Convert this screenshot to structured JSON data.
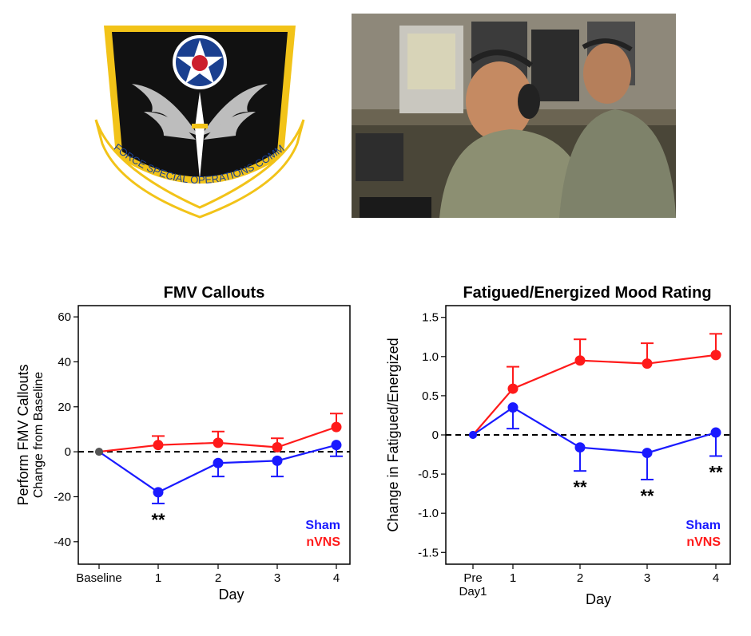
{
  "emblem": {
    "ribbon_text": "AIR FORCE SPECIAL OPERATIONS COMMAND",
    "colors": {
      "shield": "#111111",
      "border": "#f2c318",
      "star_disc": "#1a3f8f",
      "center": "#cc1f2d",
      "wings": "#bdbdbd"
    }
  },
  "photo": {
    "icon": "operators-at-workstations-photo"
  },
  "colors": {
    "sham": "#1a1aff",
    "nvns": "#ff1a1a"
  },
  "chart_data": [
    {
      "type": "line",
      "title": "FMV Callouts",
      "ylabel": "Perform FMV Callouts",
      "ylabel_sub": "Change  from Baseline",
      "xlabel": "Day",
      "categories": [
        "Baseline",
        "1",
        "2",
        "3",
        "4"
      ],
      "ylim": [
        -50,
        65
      ],
      "yticks": [
        60,
        40,
        20,
        0,
        -20,
        -40
      ],
      "ytick_labels": [
        "60",
        "40",
        "20",
        "0",
        "-20",
        "-40"
      ],
      "series": [
        {
          "name": "Sham",
          "values": [
            0,
            -18,
            -5,
            -4,
            3
          ],
          "error": [
            0,
            5,
            6,
            7,
            5
          ]
        },
        {
          "name": "nVNS",
          "values": [
            0,
            3,
            4,
            2,
            11
          ],
          "error": [
            0,
            4,
            5,
            4,
            6
          ]
        }
      ],
      "annotations": [
        {
          "x_index": 1,
          "text": "**"
        }
      ],
      "reference_line": 0,
      "legend_position": "bottom-right"
    },
    {
      "type": "line",
      "title": "Fatigued/Energized Mood Rating",
      "ylabel": "Change in Fatigued/Energized",
      "xlabel": "Day",
      "categories": [
        "Pre\nDay1",
        "1",
        "2",
        "3",
        "4"
      ],
      "ylim": [
        -1.65,
        1.65
      ],
      "yticks": [
        1.5,
        1.0,
        0.5,
        0,
        -0.5,
        -1.0,
        -1.5
      ],
      "ytick_labels": [
        "1.5",
        "1.0",
        "0.5",
        "0",
        "-0.5",
        "-1.0",
        "-1.5"
      ],
      "series": [
        {
          "name": "Sham",
          "values": [
            0,
            0.35,
            -0.16,
            -0.23,
            0.03
          ],
          "error": [
            0,
            0.27,
            0.3,
            0.34,
            0.3
          ]
        },
        {
          "name": "nVNS",
          "values": [
            0,
            0.59,
            0.95,
            0.91,
            1.02
          ],
          "error": [
            0,
            0.28,
            0.27,
            0.26,
            0.27
          ]
        }
      ],
      "annotations": [
        {
          "x_index": 2,
          "text": "**"
        },
        {
          "x_index": 3,
          "text": "**"
        },
        {
          "x_index": 4,
          "text": "**"
        }
      ],
      "reference_line": 0,
      "legend_position": "bottom-right"
    }
  ]
}
